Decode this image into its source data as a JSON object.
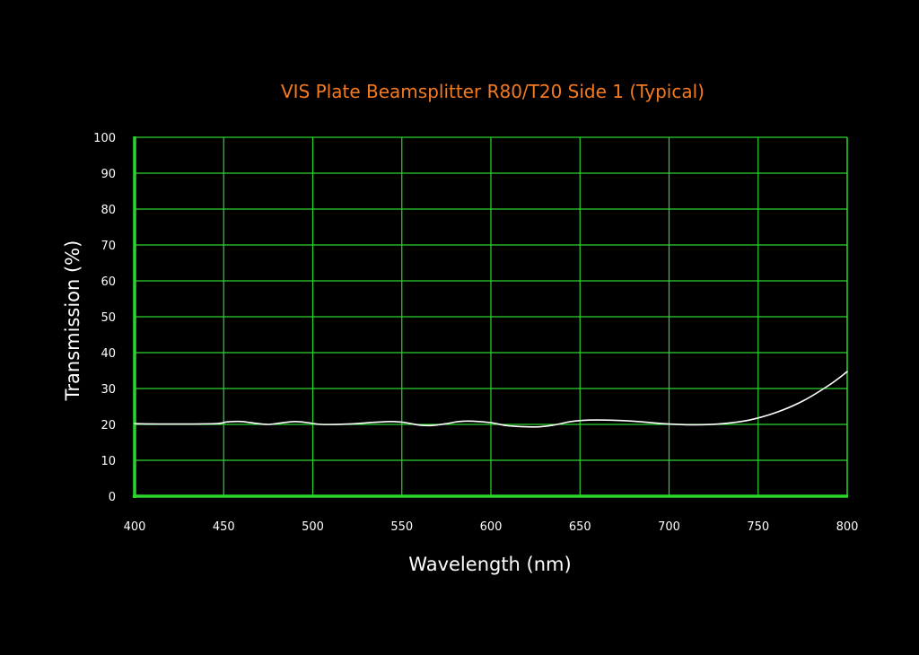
{
  "chart_data": {
    "type": "line",
    "title": "VIS Plate Beamsplitter R80/T20 Side 1 (Typical)",
    "xlabel": "Wavelength (nm)",
    "ylabel": "Transmission (%)",
    "xlim": [
      400,
      800
    ],
    "ylim": [
      0,
      100
    ],
    "x_ticks": [
      "400",
      "450",
      "500",
      "550",
      "600",
      "650",
      "700",
      "750",
      "800"
    ],
    "y_ticks": [
      "0",
      "10",
      "20",
      "30",
      "40",
      "50",
      "60",
      "70",
      "80",
      "90",
      "100"
    ],
    "grid": true,
    "series": [
      {
        "x": [
          400,
          420,
          445,
          452,
          460,
          468,
          475,
          482,
          490,
          497,
          505,
          520,
          535,
          545,
          552,
          560,
          567,
          575,
          582,
          590,
          600,
          610,
          625,
          635,
          645,
          655,
          665,
          680,
          700,
          715,
          730,
          745,
          760,
          775,
          790,
          800
        ],
        "y": [
          20.2,
          20.1,
          20.2,
          20.7,
          20.8,
          20.3,
          20.0,
          20.4,
          20.8,
          20.5,
          20.0,
          20.1,
          20.6,
          20.8,
          20.5,
          19.8,
          19.7,
          20.2,
          20.8,
          20.9,
          20.5,
          19.6,
          19.3,
          19.8,
          20.8,
          21.2,
          21.2,
          20.9,
          20.1,
          19.9,
          20.2,
          21.2,
          23.3,
          26.5,
          31.0,
          34.7
        ]
      }
    ],
    "colors": {
      "title": "#f47a20",
      "grid": "#2bd62b",
      "line": "#ffffff",
      "text": "#ffffff",
      "background": "#000000"
    }
  }
}
